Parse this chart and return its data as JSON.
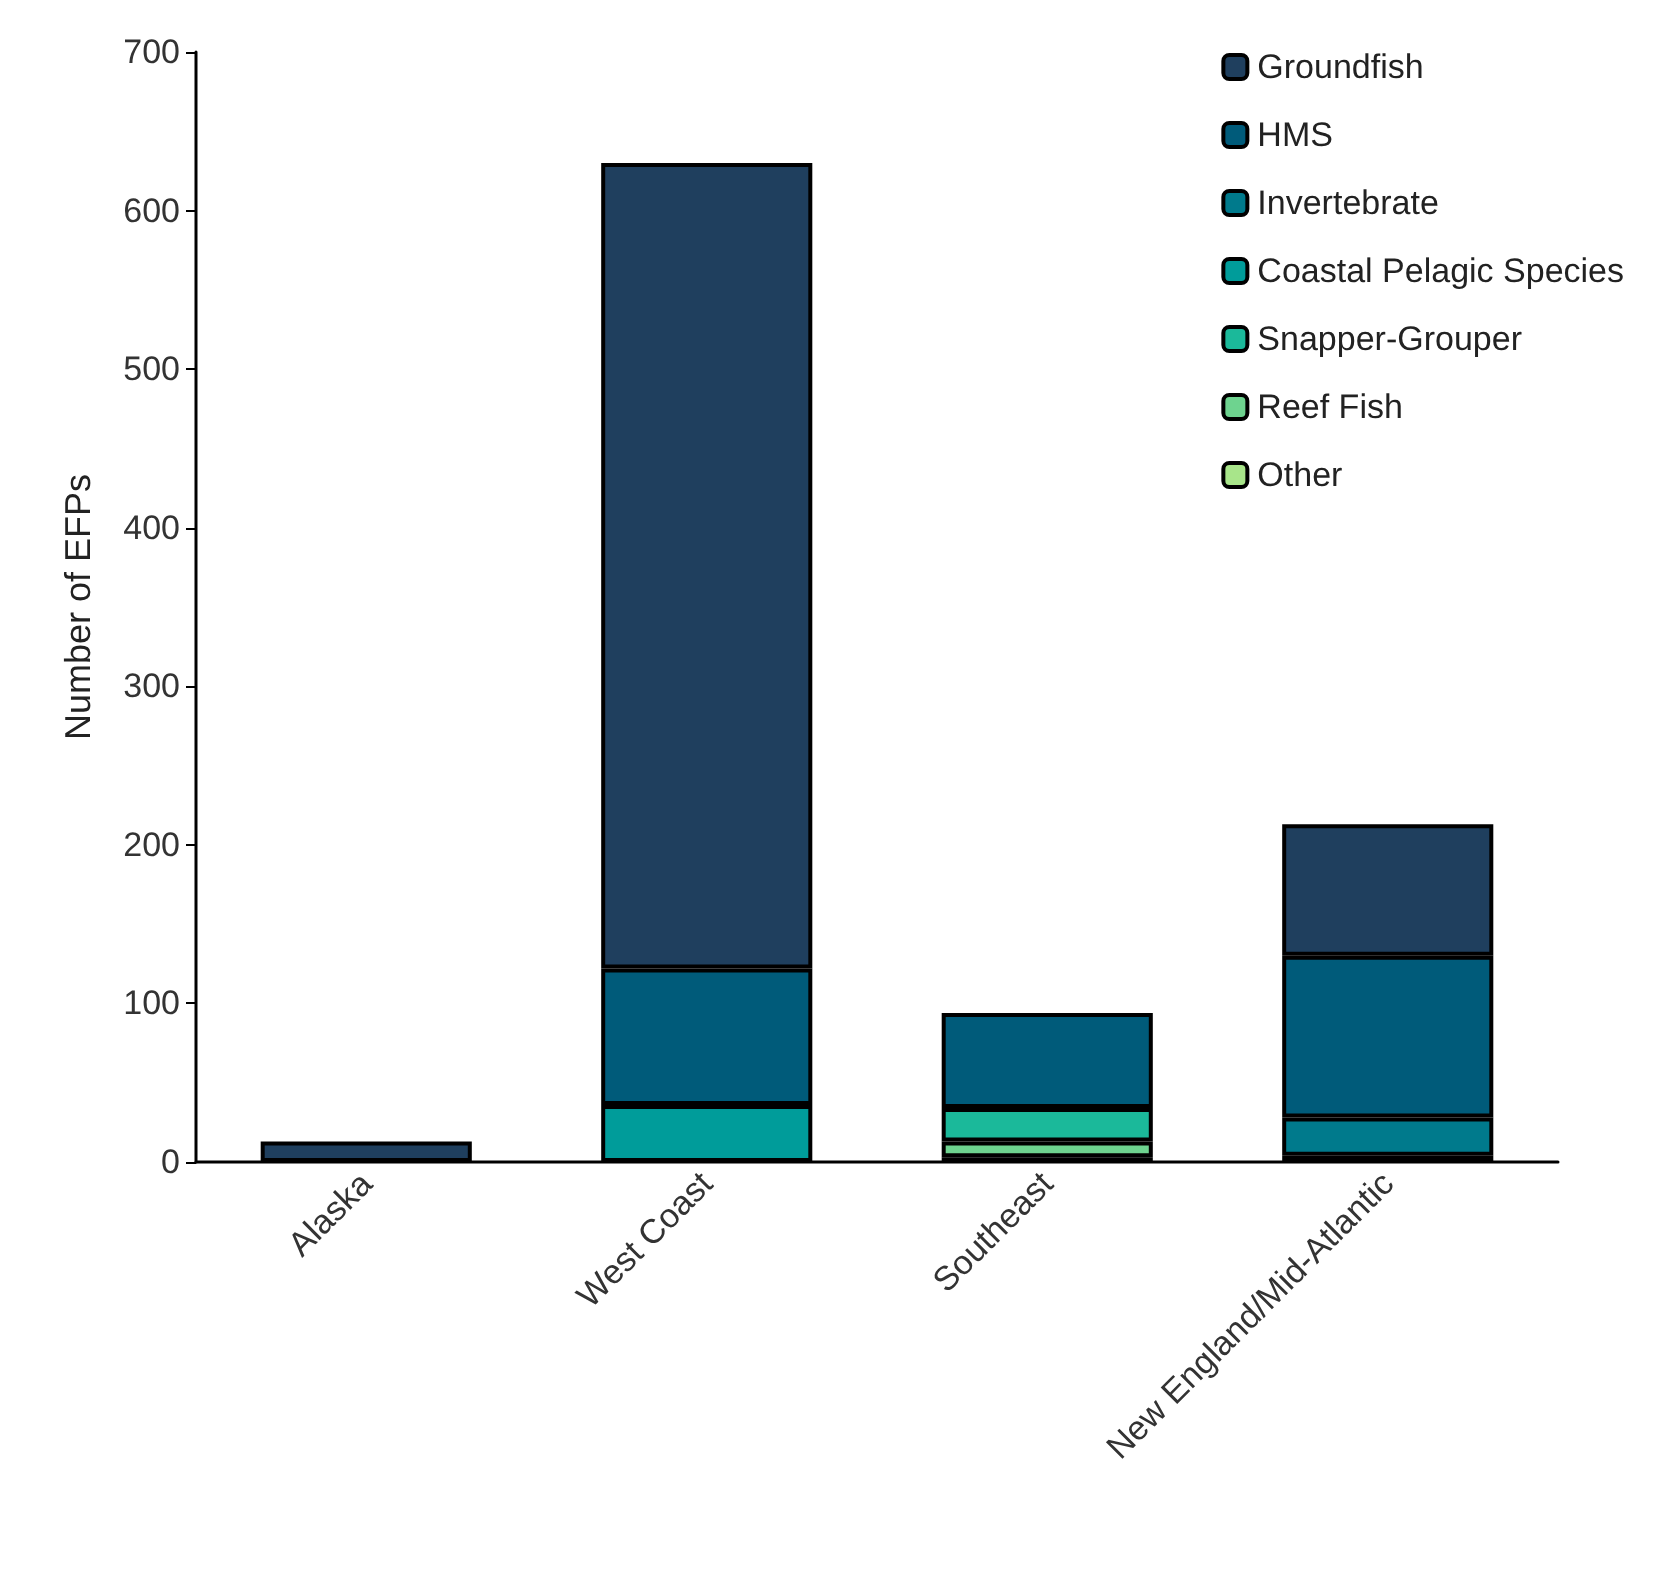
{
  "chart_data": {
    "type": "bar",
    "stacked": true,
    "ylabel": "Number of EFPs",
    "categories": [
      "Alaska",
      "West Coast",
      "Southeast",
      "New England/Mid-Atlantic"
    ],
    "series": [
      {
        "name": "Other",
        "color": "#a8e58a",
        "values": [
          null,
          null,
          3,
          4
        ]
      },
      {
        "name": "Reef Fish",
        "color": "#6ed38f",
        "values": [
          null,
          null,
          10,
          null
        ]
      },
      {
        "name": "Snapper-Grouper",
        "color": "#1bb99a",
        "values": [
          null,
          null,
          21,
          null
        ]
      },
      {
        "name": "Coastal Pelagic Species",
        "color": "#009c9a",
        "values": [
          null,
          36,
          null,
          null
        ]
      },
      {
        "name": "Invertebrate",
        "color": "#007a8c",
        "values": [
          null,
          null,
          null,
          24
        ]
      },
      {
        "name": "HMS",
        "color": "#005b7a",
        "values": [
          null,
          86,
          60,
          102
        ]
      },
      {
        "name": "Groundfish",
        "color": "#1f3f5e",
        "values": [
          13,
          508,
          null,
          83
        ]
      }
    ],
    "ylim": [
      0,
      700
    ],
    "yticks": [
      0,
      100,
      200,
      300,
      400,
      500,
      600,
      700
    ],
    "grid": false,
    "legend": "top right"
  }
}
